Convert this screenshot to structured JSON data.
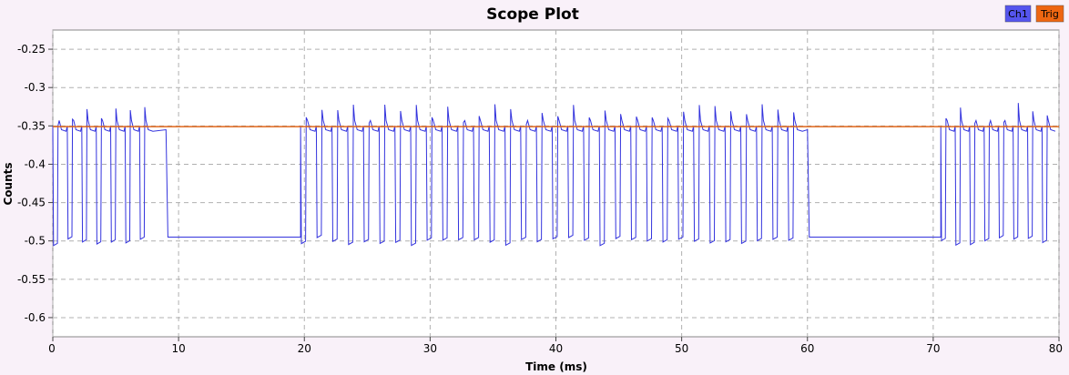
{
  "chart_data": {
    "type": "line",
    "title": "Scope Plot",
    "xlabel": "Time (ms)",
    "ylabel": "Counts",
    "xlim": [
      0,
      80
    ],
    "ylim": [
      -0.625,
      -0.225
    ],
    "x_ticks": [
      0,
      10,
      20,
      30,
      40,
      50,
      60,
      70,
      80
    ],
    "y_ticks": [
      -0.25,
      -0.3,
      -0.35,
      -0.4,
      -0.45,
      -0.5,
      -0.55,
      -0.6
    ],
    "grid": true,
    "legend_position": "top-right",
    "series": [
      {
        "name": "Ch1",
        "color": "#3333dd",
        "baseline_low": -0.495,
        "high_level": -0.355,
        "overshoot": -0.335,
        "bursts": [
          {
            "start": 0.0,
            "end": 9.0,
            "period": 1.15
          },
          {
            "start": 19.7,
            "end": 60.0,
            "period": 1.25
          },
          {
            "start": 70.6,
            "end": 80.0,
            "period": 1.15
          }
        ]
      },
      {
        "name": "Trig",
        "color": "#e0661a",
        "level": -0.351
      }
    ],
    "legend": [
      {
        "label": "Ch1",
        "color": "#5555ee"
      },
      {
        "label": "Trig",
        "color": "#ee6611"
      }
    ]
  }
}
